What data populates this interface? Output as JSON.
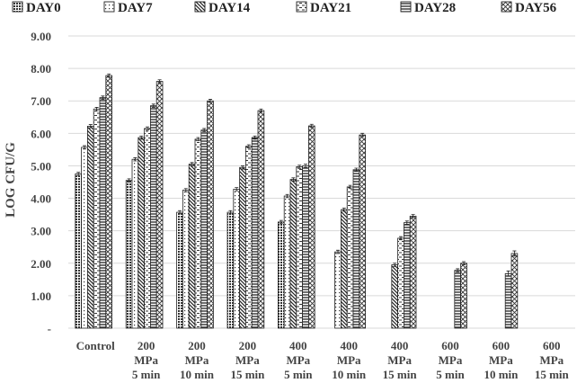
{
  "chart_data": {
    "type": "bar",
    "title": "",
    "xlabel": "",
    "ylabel": "LOG CFU/G",
    "ylim": [
      0,
      9
    ],
    "yticks": [
      "-",
      "1.00",
      "2.00",
      "3.00",
      "4.00",
      "5.00",
      "6.00",
      "7.00",
      "8.00",
      "9.00"
    ],
    "grid": true,
    "legend_position": "top",
    "categories": [
      [
        "Control"
      ],
      [
        "200",
        "MPa",
        "5 min"
      ],
      [
        "200",
        "MPa",
        "10 min"
      ],
      [
        "200",
        "MPa",
        "15 min"
      ],
      [
        "400",
        "MPa",
        "5 min"
      ],
      [
        "400",
        "MPa",
        "10 min"
      ],
      [
        "400",
        "MPa",
        "15 min"
      ],
      [
        "600",
        "MPa",
        "5 min"
      ],
      [
        "600",
        "MPa",
        "10 min"
      ],
      [
        "600",
        "MPa",
        "15 min"
      ]
    ],
    "series": [
      {
        "name": "DAY0",
        "pattern": "dense-dots",
        "values": [
          4.75,
          4.55,
          3.57,
          3.57,
          3.27,
          null,
          null,
          null,
          null,
          null
        ]
      },
      {
        "name": "DAY7",
        "pattern": "sparse-dots",
        "values": [
          5.57,
          5.2,
          4.25,
          4.28,
          4.07,
          2.35,
          null,
          null,
          null,
          null
        ]
      },
      {
        "name": "DAY14",
        "pattern": "diagonal-lines",
        "values": [
          6.22,
          5.87,
          5.05,
          4.95,
          4.58,
          3.65,
          1.95,
          null,
          null,
          null
        ]
      },
      {
        "name": "DAY21",
        "pattern": "dashed-lines",
        "values": [
          6.75,
          6.15,
          5.82,
          5.6,
          4.97,
          4.35,
          2.77,
          null,
          null,
          null
        ]
      },
      {
        "name": "DAY28",
        "pattern": "horizontal-lines",
        "values": [
          7.1,
          6.85,
          6.1,
          5.87,
          5.0,
          4.88,
          3.25,
          1.78,
          1.68,
          null
        ]
      },
      {
        "name": "DAY56",
        "pattern": "crosshatch",
        "values": [
          7.78,
          7.6,
          7.0,
          6.7,
          6.23,
          5.95,
          3.45,
          2.0,
          2.3,
          null
        ]
      }
    ],
    "error_bars": [
      [
        0.05,
        0.05,
        0.05,
        0.05,
        0.05,
        null,
        null,
        null,
        null,
        null
      ],
      [
        0.05,
        0.05,
        0.05,
        0.05,
        0.05,
        0.05,
        null,
        null,
        null,
        null
      ],
      [
        0.05,
        0.05,
        0.05,
        0.05,
        0.05,
        0.05,
        0.05,
        null,
        null,
        null
      ],
      [
        0.05,
        0.05,
        0.05,
        0.05,
        0.05,
        0.05,
        0.05,
        null,
        null,
        null
      ],
      [
        0.05,
        0.05,
        0.05,
        0.05,
        0.05,
        0.05,
        0.05,
        0.05,
        0.08,
        null
      ],
      [
        0.05,
        0.05,
        0.05,
        0.05,
        0.05,
        0.05,
        0.05,
        0.05,
        0.08,
        null
      ]
    ]
  }
}
